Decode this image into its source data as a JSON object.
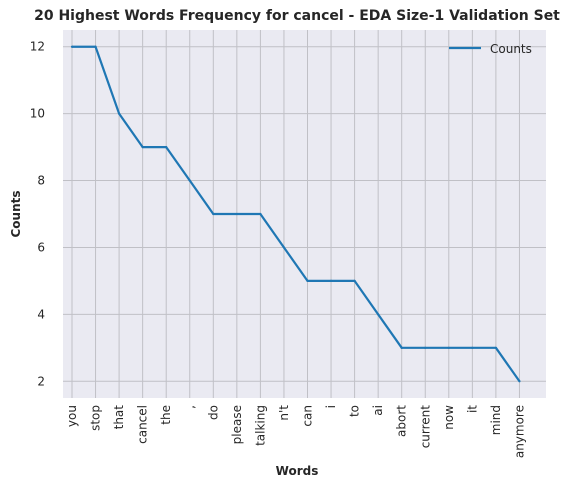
{
  "chart_data": {
    "type": "line",
    "title": "20 Highest Words Frequency for cancel - EDA Size-1 Validation Set",
    "xlabel": "Words",
    "ylabel": "Counts",
    "categories": [
      "you",
      "stop",
      "that",
      "cancel",
      "the",
      ",",
      "do",
      "please",
      "talking",
      "n't",
      "can",
      "i",
      "to",
      "ai",
      "abort",
      "current",
      "now",
      "it",
      "mind",
      "anymore"
    ],
    "series": [
      {
        "name": "Counts",
        "values": [
          12,
          12,
          10,
          9,
          9,
          8,
          7,
          7,
          7,
          6,
          5,
          5,
          5,
          4,
          3,
          3,
          3,
          3,
          3,
          2
        ]
      }
    ],
    "yticks": [
      2,
      4,
      6,
      8,
      10,
      12
    ],
    "ylim": [
      1.5,
      12.5
    ],
    "grid": true,
    "legend": "top-right",
    "colors": {
      "line": "#1f77b4",
      "plot_bg": "#eaeaf2",
      "grid": "#c0c0c6"
    }
  }
}
